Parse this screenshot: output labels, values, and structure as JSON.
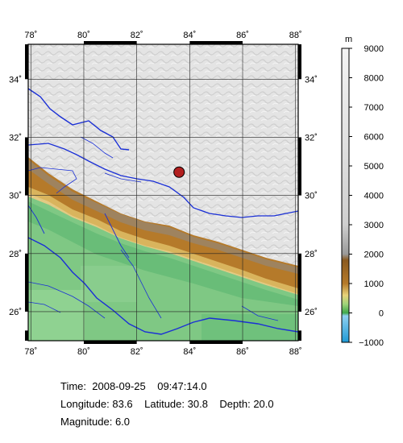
{
  "map": {
    "lon_ticks": [
      "78˚",
      "80˚",
      "82˚",
      "84˚",
      "86˚",
      "88˚"
    ],
    "lat_ticks": [
      "26˚",
      "28˚",
      "30˚",
      "32˚",
      "34˚"
    ],
    "extent": {
      "lon_min": 77.9,
      "lon_max": 88.1,
      "lat_min": 25.0,
      "lat_max": 35.2
    },
    "colors": {
      "lowland_green": "#7fc884",
      "foothill_green": "#5fb874",
      "mountain_brown": "#b57a2a",
      "snow_gray": "#e6e6e6",
      "river_blue": "#1a2fd6",
      "epicenter_fill": "#b21f1f"
    }
  },
  "epicenter": {
    "lon": 83.6,
    "lat": 30.8
  },
  "colorbar": {
    "unit": "m",
    "labels": [
      "9000",
      "8000",
      "7000",
      "6000",
      "5000",
      "4000",
      "3000",
      "2000",
      "1000",
      "0",
      "−1000"
    ],
    "min": -1000,
    "max": 9000
  },
  "info": {
    "time_label": "Time:",
    "date": "2008-09-25",
    "time": "09:47:14.0",
    "longitude_label": "Longitude:",
    "longitude": "83.6",
    "latitude_label": "Latitude:",
    "latitude": "30.8",
    "depth_label": "Depth:",
    "depth": "20.0",
    "magnitude_label": "Magnitude:",
    "magnitude": "6.0"
  }
}
